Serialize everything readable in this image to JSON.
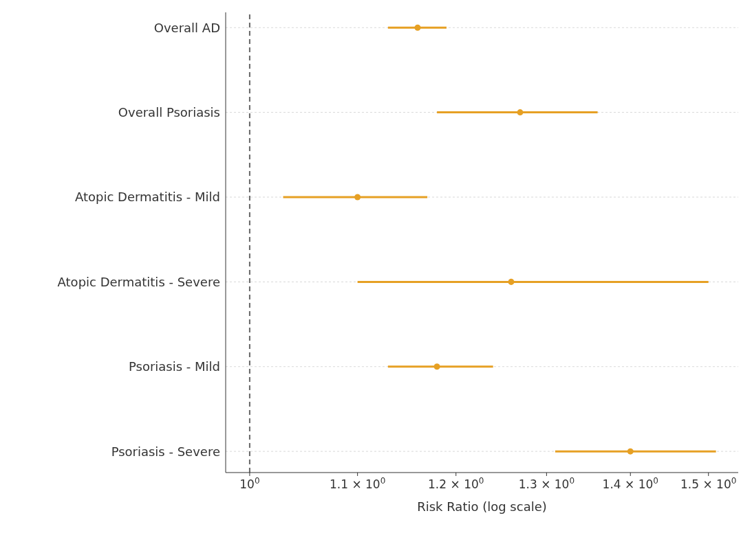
{
  "chart_data": {
    "type": "scatter",
    "xlabel": "Risk Ratio (log scale)",
    "categories": [
      "Overall AD",
      "Overall Psoriasis",
      "Atopic Dermatitis - Mild",
      "Atopic Dermatitis - Severe",
      "Psoriasis - Mild",
      "Psoriasis - Severe"
    ],
    "orientation": "horizontal",
    "series": [
      {
        "color": "#e6a024",
        "values": [
          1.16,
          1.27,
          1.1,
          1.26,
          1.18,
          1.4
        ],
        "errors": [
          [
            1.13,
            1.19
          ],
          [
            1.18,
            1.36
          ],
          [
            1.03,
            1.17
          ],
          [
            1.1,
            1.5
          ],
          [
            1.13,
            1.24
          ],
          [
            1.31,
            1.51
          ]
        ]
      }
    ],
    "log": "x",
    "xlim": [
      0.979,
      1.54
    ],
    "xticks": [
      {
        "value": 1,
        "label": "10$^{0}$"
      },
      {
        "value": 1.1,
        "label": "1.1 × 10$^{0}$"
      },
      {
        "value": 1.2,
        "label": "1.2 × 10$^{0}$"
      },
      {
        "value": 1.3,
        "label": "1.3 × 10$^{0}$"
      },
      {
        "value": 1.4,
        "label": "1.4 × 10$^{0}$"
      },
      {
        "value": 1.5,
        "label": "1.5 × 10$^{0}$"
      }
    ],
    "ref_lines": [
      {
        "axis": "x",
        "value": 1,
        "line_style": "dashed",
        "color": "#666666"
      }
    ],
    "grid": "y",
    "marker": "circle"
  }
}
